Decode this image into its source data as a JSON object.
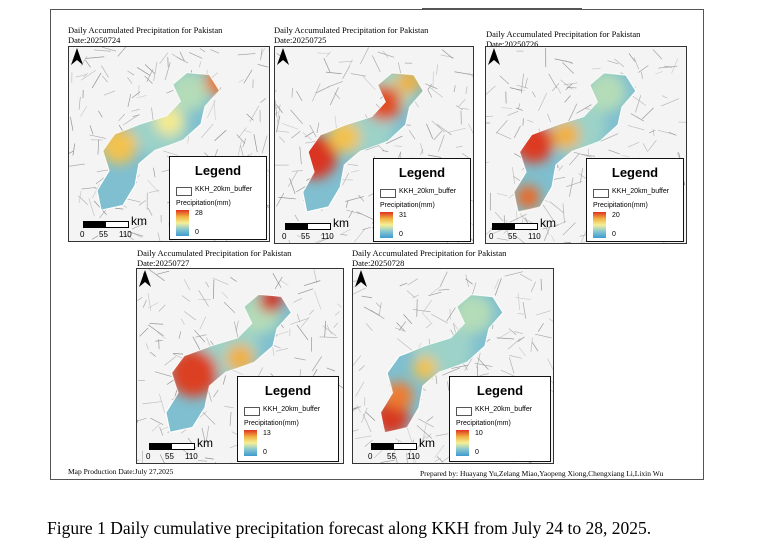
{
  "panels": [
    {
      "title": "Daily Accumulated Precipitation for Pakistan",
      "date": "Date:20250724",
      "legend_title": "Legend",
      "buffer_label": "KKH_20km_buffer",
      "precip_label": "Precipitation(mm)",
      "max": "28",
      "min": "0",
      "scale_unit": "km",
      "scale_ticks": [
        "0",
        "55",
        "110"
      ],
      "max_mm": 28,
      "min_mm": 0
    },
    {
      "title": "Daily Accumulated Precipitation for Pakistan",
      "date": "Date:20250725",
      "legend_title": "Legend",
      "buffer_label": "KKH_20km_buffer",
      "precip_label": "Precipitation(mm)",
      "max": "31",
      "min": "0",
      "scale_unit": "km",
      "scale_ticks": [
        "0",
        "55",
        "110"
      ],
      "max_mm": 31,
      "min_mm": 0
    },
    {
      "title": "Daily Accumulated Precipitation for Pakistan",
      "date": "Date:20250726",
      "legend_title": "Legend",
      "buffer_label": "KKH_20km_buffer",
      "precip_label": "Precipitation(mm)",
      "max": "20",
      "min": "0",
      "scale_unit": "km",
      "scale_ticks": [
        "0",
        "55",
        "110"
      ],
      "max_mm": 20,
      "min_mm": 0
    },
    {
      "title": "Daily Accumulated Precipitation for Pakistan",
      "date": "Date:20250727",
      "legend_title": "Legend",
      "buffer_label": "KKH_20km_buffer",
      "precip_label": "Precipitation(mm)",
      "max": "13",
      "min": "0",
      "scale_unit": "km",
      "scale_ticks": [
        "0",
        "55",
        "110"
      ],
      "max_mm": 13,
      "min_mm": 0
    },
    {
      "title": "Daily Accumulated Precipitation for Pakistan",
      "date": "Date:20250728",
      "legend_title": "Legend",
      "buffer_label": "KKH_20km_buffer",
      "precip_label": "Precipitation(mm)",
      "max": "10",
      "min": "0",
      "scale_unit": "km",
      "scale_ticks": [
        "0",
        "55",
        "110"
      ],
      "max_mm": 10,
      "min_mm": 0
    }
  ],
  "footer": {
    "production_date": "Map Production Date:July 27,2025",
    "prepared_by": "Prepared by: Huayang Yu,Zelang Miao,Yaopeng Xiong,Chengxiang Li,Lixin Wu"
  },
  "caption": "Figure 1 Daily cumulative precipitation forecast along KKH from July 24 to 28, 2025.",
  "colors": {
    "ramp_high": "#e03020",
    "ramp_mid_high": "#f0b040",
    "ramp_mid": "#f4f098",
    "ramp_mid_low": "#86c6d0",
    "ramp_low": "#3e9ad0",
    "frame": "#333333",
    "terrain": "#f4f4f4"
  },
  "icons": {
    "north_arrow": "north-arrow-icon"
  }
}
